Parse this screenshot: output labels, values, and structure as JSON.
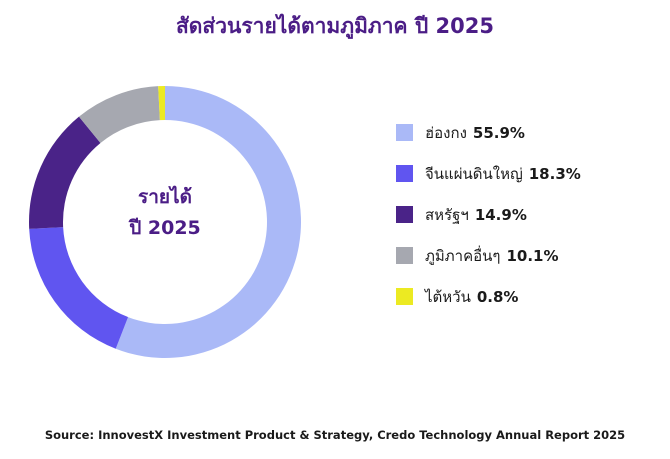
{
  "chart_data": {
    "type": "pie",
    "title": "สัดส่วนรายได้ตามภูมิภาค ปี 2025",
    "center_label": [
      "รายได้",
      "ปี 2025"
    ],
    "categories": [
      "ฮ่องกง",
      "จีนแผ่นดินใหญ่",
      "สหรัฐฯ",
      "ภูมิภาคอื่นๆ",
      "ไต้หวัน"
    ],
    "values": [
      55.9,
      18.3,
      14.9,
      10.1,
      0.8
    ],
    "value_labels": [
      "55.9%",
      "18.3%",
      "14.9%",
      "10.1%",
      "0.8%"
    ],
    "colors": [
      "#aab9f7",
      "#6055f0",
      "#4a2388",
      "#a6a8b0",
      "#ecea22"
    ],
    "legend_position": "right",
    "source": "Source: InnovestX Investment Product & Strategy, Credo Technology Annual Report 2025"
  }
}
